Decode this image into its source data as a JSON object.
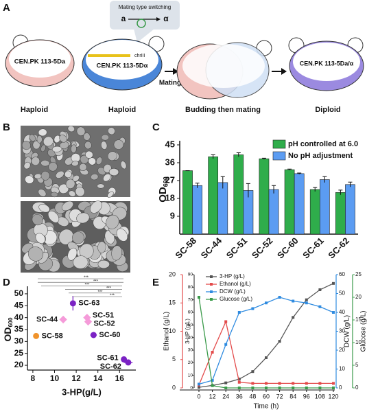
{
  "figure": {
    "panel_labels": [
      "A",
      "B",
      "C",
      "D",
      "E"
    ]
  },
  "diagram": {
    "switch_title": "Mating type switching",
    "switch_from": "a",
    "switch_to": "α",
    "gene": "chrIII",
    "cells": [
      "CEN.PK 113-5Da",
      "CEN.PK 113-5Dα",
      "CEN.PK 113-5Da/α"
    ],
    "arrow_label": "Mating",
    "stages": [
      "Haploid",
      "Haploid",
      "Budding then mating",
      "Diploid"
    ]
  },
  "chart_data": [
    {
      "type": "bar",
      "ylabel": {
        "text": "OD",
        "sub": "600"
      },
      "categories": [
        "SC-58",
        "SC-44",
        "SC-51",
        "SC-52",
        "SC-60",
        "SC-61",
        "SC-62"
      ],
      "series": [
        {
          "name": "pH controlled at 6.0",
          "color": "#2fad4b",
          "values": [
            32,
            39,
            40,
            38,
            32.5,
            22.5,
            21
          ],
          "errors": [
            0,
            1,
            1,
            0.3,
            0.3,
            1,
            1.2
          ]
        },
        {
          "name": "No pH adjustment",
          "color": "#5b9cf2",
          "values": [
            24.5,
            26,
            22,
            22.5,
            30.5,
            27.5,
            25
          ],
          "errors": [
            1.2,
            3,
            3.5,
            2,
            0.3,
            1.5,
            1.2
          ]
        }
      ],
      "ylim": [
        0,
        45
      ],
      "yticks": [
        9,
        18,
        27,
        36,
        45
      ]
    },
    {
      "type": "scatter",
      "xlabel": "3-HP(g/L)",
      "ylabel": {
        "text": "OD",
        "sub": "600"
      },
      "labels": [
        "SC-63",
        "SC-44",
        "SC-51",
        "SC-52",
        "SC-58",
        "SC-60",
        "SC-61",
        "SC-62"
      ],
      "x": [
        11.7,
        10.8,
        13.0,
        13.1,
        8.3,
        13.6,
        16.4,
        16.8
      ],
      "y": [
        46,
        39.2,
        40,
        38.3,
        32.3,
        32.7,
        22.5,
        21.2
      ],
      "xerr": [
        0.1,
        0.1,
        0.1,
        0.1,
        0.1,
        0.3,
        0.2,
        0.4
      ],
      "yerr": [
        3,
        0.5,
        0.5,
        0.5,
        0.5,
        0.5,
        1,
        1.2
      ],
      "colors": [
        "#7b22c4",
        "#f59bd9",
        "#f59bd9",
        "#f59bd9",
        "#f0932b",
        "#7b22c4",
        "#7b22c4",
        "#7b22c4"
      ],
      "xlim": [
        7.5,
        17.5
      ],
      "xticks": [
        8,
        10,
        12,
        14,
        16
      ],
      "ylim": [
        18,
        52
      ],
      "yticks": [
        20,
        25,
        30,
        35,
        40,
        45,
        50
      ],
      "annotations": [
        "***",
        "***",
        "***",
        "***",
        "***",
        "***"
      ]
    },
    {
      "type": "line",
      "xlabel": "Time (h)",
      "x": [
        0,
        12,
        24,
        36,
        48,
        60,
        72,
        84,
        96,
        108,
        120
      ],
      "xlim": [
        0,
        120
      ],
      "xticks": [
        0,
        12,
        24,
        36,
        48,
        60,
        72,
        84,
        96,
        108,
        120
      ],
      "axes": [
        {
          "label": "Ethanol (g/L)",
          "color": "#e34a4a",
          "lim": [
            0,
            20
          ],
          "ticks": [
            0,
            5,
            10,
            15,
            20
          ]
        },
        {
          "label": "3-HP (g/L)",
          "color": "#444444",
          "lim": [
            0,
            90
          ],
          "ticks": [
            0,
            10,
            20,
            30,
            40,
            50,
            60,
            70,
            80,
            90
          ]
        },
        {
          "label": "DCW (g/L)",
          "color": "#2f8be0",
          "lim": [
            0,
            60
          ],
          "ticks": [
            0,
            10,
            20,
            30,
            40,
            50,
            60
          ]
        },
        {
          "label": "Glucose (g/L)",
          "color": "#3a9a4a",
          "lim": [
            0,
            25
          ],
          "ticks": [
            0,
            5,
            10,
            15,
            20,
            25
          ]
        }
      ],
      "series": [
        {
          "name": "3-HP (g/L)",
          "color": "#555555",
          "axis": 1,
          "values": [
            0.5,
            2,
            4,
            7,
            13,
            24,
            37,
            56,
            70,
            78,
            83
          ]
        },
        {
          "name": "Ethanol (g/L)",
          "color": "#e34a4a",
          "axis": 0,
          "values": [
            0.5,
            6.3,
            11.7,
            1,
            0.8,
            0.8,
            0.8,
            0.8,
            0.8,
            0.8,
            0.8
          ]
        },
        {
          "name": "DCW (g/L)",
          "color": "#2f8be0",
          "axis": 2,
          "values": [
            2,
            4,
            23,
            40,
            42,
            45,
            48,
            46,
            45,
            43,
            40
          ]
        },
        {
          "name": "Glucose (g/L)",
          "color": "#3a9a4a",
          "axis": 3,
          "values": [
            20,
            0.5,
            0,
            0,
            0,
            0,
            0,
            0,
            0,
            0,
            0
          ]
        }
      ]
    }
  ]
}
